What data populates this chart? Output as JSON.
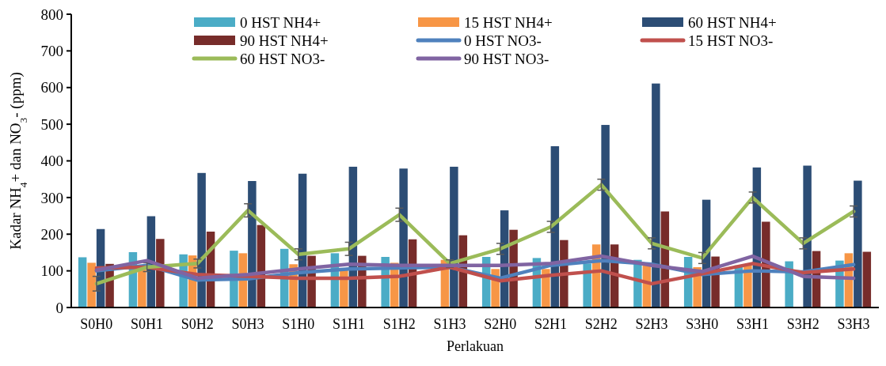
{
  "chart_data": {
    "type": "bar",
    "xlabel": "Perlakuan",
    "ylabel": "Kadar NH$_{4}$+ dan NO$_{3}$- (ppm)",
    "categories": [
      "S0H0",
      "S0H1",
      "S0H2",
      "S0H3",
      "S1H0",
      "S1H1",
      "S1H2",
      "S1H3",
      "S2H0",
      "S2H1",
      "S2H2",
      "S2H3",
      "S3H0",
      "S3H1",
      "S3H2",
      "S3H3"
    ],
    "ylim": [
      0,
      800
    ],
    "yticks": [
      0,
      100,
      200,
      300,
      400,
      500,
      600,
      700,
      800
    ],
    "grid": false,
    "legend": "top",
    "series": [
      {
        "name": "0 HST NH4+",
        "color": "#4bacc6",
        "values": [
          137,
          151,
          145,
          155,
          160,
          148,
          138,
          null,
          138,
          135,
          120,
          130,
          138,
          115,
          126,
          128
        ]
      },
      {
        "name": "15 HST NH4+",
        "color": "#f79646",
        "values": [
          122,
          105,
          142,
          148,
          118,
          105,
          122,
          130,
          105,
          105,
          172,
          120,
          110,
          118,
          null,
          148
        ]
      },
      {
        "name": "60 HST NH4+",
        "color": "#2c4d75",
        "values": [
          214,
          249,
          367,
          345,
          365,
          384,
          379,
          384,
          265,
          440,
          498,
          611,
          294,
          382,
          387,
          346
        ]
      },
      {
        "name": "90 HST NH4+",
        "color": "#772c2a",
        "values": [
          119,
          187,
          207,
          225,
          141,
          141,
          186,
          197,
          212,
          184,
          172,
          262,
          139,
          234,
          154,
          152
        ]
      },
      {
        "name": "0 HST NO3-",
        "type": "line",
        "color": "#4f81bd",
        "values": [
          100,
          115,
          75,
          78,
          95,
          105,
          108,
          110,
          80,
          115,
          128,
          118,
          90,
          100,
          97,
          117
        ]
      },
      {
        "name": "15 HST NO3-",
        "type": "line",
        "color": "#c0504d",
        "values": [
          108,
          110,
          90,
          85,
          80,
          80,
          85,
          110,
          73,
          88,
          100,
          65,
          92,
          120,
          95,
          105
        ]
      },
      {
        "name": "60 HST NO3-",
        "type": "line",
        "color": "#9bbb59",
        "values": [
          65,
          110,
          120,
          265,
          145,
          160,
          253,
          120,
          160,
          220,
          335,
          175,
          135,
          300,
          175,
          262
        ],
        "errors": [
          20,
          12,
          12,
          18,
          15,
          18,
          18,
          10,
          15,
          15,
          15,
          15,
          15,
          15,
          15,
          15
        ]
      },
      {
        "name": "90 HST NO3-",
        "type": "line",
        "color": "#8064a2",
        "values": [
          102,
          128,
          80,
          90,
          105,
          118,
          115,
          115,
          115,
          120,
          140,
          115,
          98,
          140,
          85,
          80
        ]
      }
    ]
  }
}
